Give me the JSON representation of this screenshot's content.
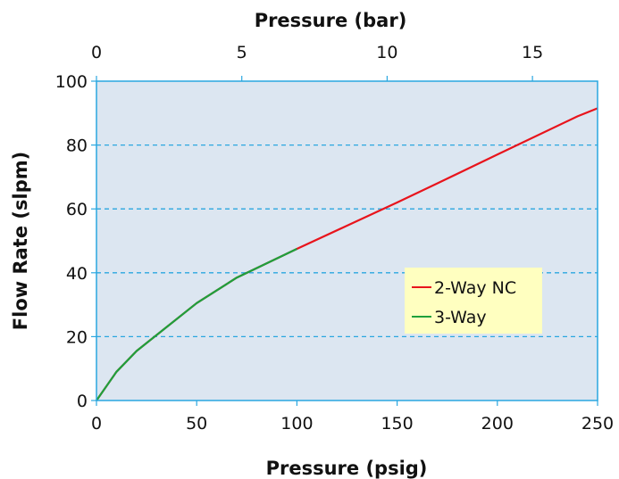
{
  "chart_data": {
    "type": "line",
    "xlabel": "Pressure (psig)",
    "x2label": "Pressure (bar)",
    "ylabel": "Flow Rate (slpm)",
    "xlim": [
      0,
      250
    ],
    "x2lim": [
      0,
      17.24
    ],
    "ylim": [
      0,
      100
    ],
    "xticks": [
      0,
      50,
      100,
      150,
      200,
      250
    ],
    "x2ticks": [
      0,
      5,
      10,
      15
    ],
    "yticks": [
      0,
      20,
      40,
      60,
      80,
      100
    ],
    "grid": "horizontal dashed",
    "legend_position": "center-right",
    "series": [
      {
        "name": "2-Way NC",
        "color": "#e8141c",
        "x": [
          0,
          10,
          20,
          30,
          50,
          70,
          100,
          150,
          170,
          200,
          240,
          250
        ],
        "y": [
          0,
          9,
          15.5,
          20.5,
          30.5,
          38.5,
          47.5,
          62,
          68,
          77,
          89,
          91.5
        ]
      },
      {
        "name": "3-Way",
        "color": "#1ea03c",
        "x": [
          0,
          10,
          20,
          30,
          50,
          70,
          100
        ],
        "y": [
          0,
          9,
          15.5,
          20.5,
          30.5,
          38.5,
          47.5
        ]
      }
    ],
    "colors": {
      "plot_background": "#dce6f1",
      "grid": "#2aa7e0",
      "frame": "#2aa7e0",
      "legend_background": "#ffffc0"
    }
  }
}
